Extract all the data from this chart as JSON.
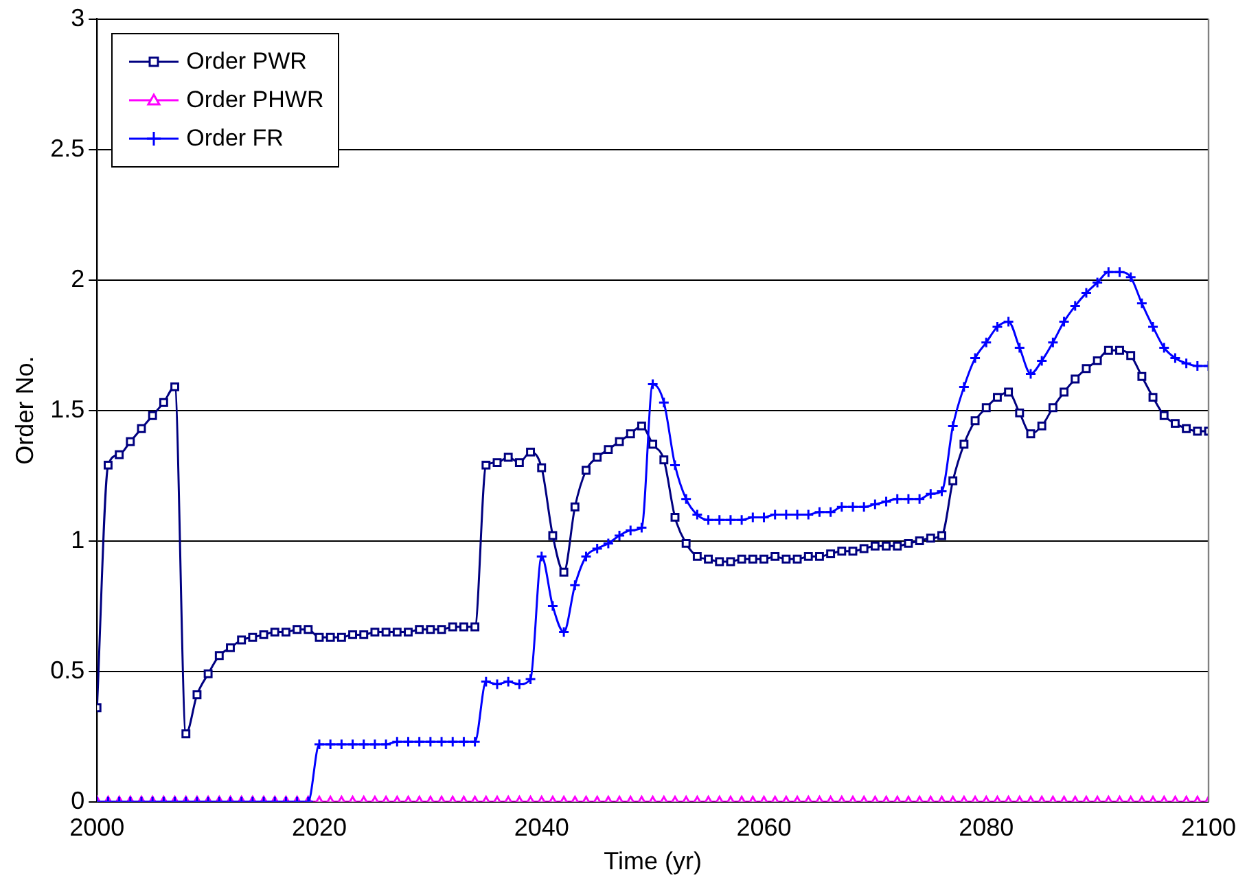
{
  "chart_data": {
    "type": "line",
    "xlabel": "Time (yr)",
    "ylabel": "Order No.",
    "x": [
      2000,
      2001,
      2002,
      2003,
      2004,
      2005,
      2006,
      2007,
      2008,
      2009,
      2010,
      2011,
      2012,
      2013,
      2014,
      2015,
      2016,
      2017,
      2018,
      2019,
      2020,
      2021,
      2022,
      2023,
      2024,
      2025,
      2026,
      2027,
      2028,
      2029,
      2030,
      2031,
      2032,
      2033,
      2034,
      2035,
      2036,
      2037,
      2038,
      2039,
      2040,
      2041,
      2042,
      2043,
      2044,
      2045,
      2046,
      2047,
      2048,
      2049,
      2050,
      2051,
      2052,
      2053,
      2054,
      2055,
      2056,
      2057,
      2058,
      2059,
      2060,
      2061,
      2062,
      2063,
      2064,
      2065,
      2066,
      2067,
      2068,
      2069,
      2070,
      2071,
      2072,
      2073,
      2074,
      2075,
      2076,
      2077,
      2078,
      2079,
      2080,
      2081,
      2082,
      2083,
      2084,
      2085,
      2086,
      2087,
      2088,
      2089,
      2090,
      2091,
      2092,
      2093,
      2094,
      2095,
      2096,
      2097,
      2098,
      2099,
      2100
    ],
    "series": [
      {
        "name": "Order PWR",
        "color": "#000080",
        "marker": "square",
        "values": [
          0.36,
          1.29,
          1.33,
          1.38,
          1.43,
          1.48,
          1.53,
          1.59,
          0.26,
          0.41,
          0.49,
          0.56,
          0.59,
          0.62,
          0.63,
          0.64,
          0.65,
          0.65,
          0.66,
          0.66,
          0.63,
          0.63,
          0.63,
          0.64,
          0.64,
          0.65,
          0.65,
          0.65,
          0.65,
          0.66,
          0.66,
          0.66,
          0.67,
          0.67,
          0.67,
          1.29,
          1.3,
          1.32,
          1.3,
          1.34,
          1.28,
          1.02,
          0.88,
          1.13,
          1.27,
          1.32,
          1.35,
          1.38,
          1.41,
          1.44,
          1.37,
          1.31,
          1.09,
          0.99,
          0.94,
          0.93,
          0.92,
          0.92,
          0.93,
          0.93,
          0.93,
          0.94,
          0.93,
          0.93,
          0.94,
          0.94,
          0.95,
          0.96,
          0.96,
          0.97,
          0.98,
          0.98,
          0.98,
          0.99,
          1.0,
          1.01,
          1.02,
          1.23,
          1.37,
          1.46,
          1.51,
          1.55,
          1.57,
          1.49,
          1.41,
          1.44,
          1.51,
          1.57,
          1.62,
          1.66,
          1.69,
          1.73,
          1.73,
          1.71,
          1.63,
          1.55,
          1.48,
          1.45,
          1.43,
          1.42,
          1.42
        ]
      },
      {
        "name": "Order PHWR",
        "color": "#ff00ff",
        "marker": "triangle",
        "values": [
          0,
          0,
          0,
          0,
          0,
          0,
          0,
          0,
          0,
          0,
          0,
          0,
          0,
          0,
          0,
          0,
          0,
          0,
          0,
          0,
          0,
          0,
          0,
          0,
          0,
          0,
          0,
          0,
          0,
          0,
          0,
          0,
          0,
          0,
          0,
          0,
          0,
          0,
          0,
          0,
          0,
          0,
          0,
          0,
          0,
          0,
          0,
          0,
          0,
          0,
          0,
          0,
          0,
          0,
          0,
          0,
          0,
          0,
          0,
          0,
          0,
          0,
          0,
          0,
          0,
          0,
          0,
          0,
          0,
          0,
          0,
          0,
          0,
          0,
          0,
          0,
          0,
          0,
          0,
          0,
          0,
          0,
          0,
          0,
          0,
          0,
          0,
          0,
          0,
          0,
          0,
          0,
          0,
          0,
          0,
          0,
          0,
          0,
          0,
          0,
          0
        ]
      },
      {
        "name": "Order FR",
        "color": "#0000ff",
        "marker": "cross",
        "values": [
          0,
          0,
          0,
          0,
          0,
          0,
          0,
          0,
          0,
          0,
          0,
          0,
          0,
          0,
          0,
          0,
          0,
          0,
          0,
          0,
          0.22,
          0.22,
          0.22,
          0.22,
          0.22,
          0.22,
          0.22,
          0.23,
          0.23,
          0.23,
          0.23,
          0.23,
          0.23,
          0.23,
          0.23,
          0.46,
          0.45,
          0.46,
          0.45,
          0.47,
          0.94,
          0.75,
          0.65,
          0.83,
          0.94,
          0.97,
          0.99,
          1.02,
          1.04,
          1.05,
          1.6,
          1.53,
          1.29,
          1.16,
          1.1,
          1.08,
          1.08,
          1.08,
          1.08,
          1.09,
          1.09,
          1.1,
          1.1,
          1.1,
          1.1,
          1.11,
          1.11,
          1.13,
          1.13,
          1.13,
          1.14,
          1.15,
          1.16,
          1.16,
          1.16,
          1.18,
          1.19,
          1.44,
          1.59,
          1.7,
          1.76,
          1.82,
          1.84,
          1.74,
          1.64,
          1.69,
          1.76,
          1.84,
          1.9,
          1.95,
          1.99,
          2.03,
          2.03,
          2.01,
          1.91,
          1.82,
          1.74,
          1.7,
          1.68,
          1.67,
          1.67
        ]
      }
    ],
    "xlim": [
      2000,
      2100
    ],
    "xticks": [
      2000,
      2020,
      2040,
      2060,
      2080,
      2100
    ],
    "ylim": [
      0,
      3
    ],
    "yticks": [
      0,
      0.5,
      1,
      1.5,
      2,
      2.5,
      3
    ],
    "grid": "y",
    "legend": "top left"
  }
}
